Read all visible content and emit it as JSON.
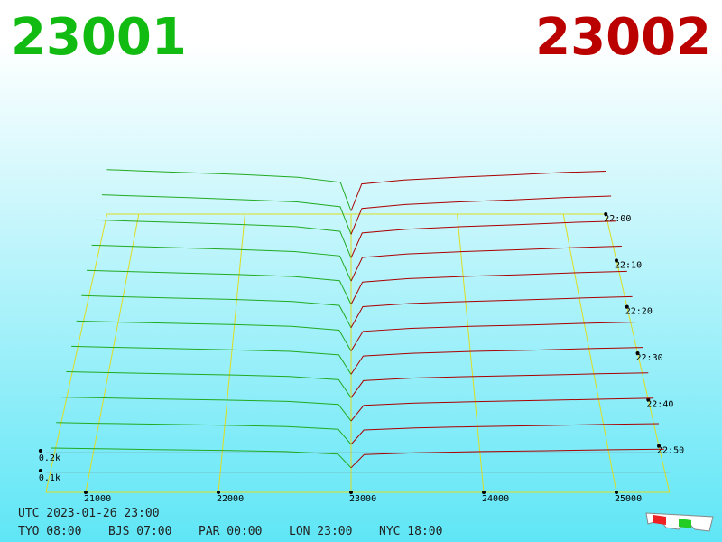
{
  "chart_data": {
    "type": "depth3d",
    "left_title": "23001",
    "left_title_color": "#11bb11",
    "right_title": "23002",
    "right_title_color": "#bb0000",
    "bid_color": "#22aa22",
    "ask_color": "#aa0000",
    "xlim": [
      20700,
      25400
    ],
    "xticks": [
      21000,
      22000,
      23000,
      24000,
      25000
    ],
    "zticks": [
      {
        "value": 100,
        "label": "0.1k"
      },
      {
        "value": 200,
        "label": "0.2k"
      }
    ],
    "bid_prices": [
      20700,
      21000,
      21500,
      22000,
      22500,
      22900,
      23000
    ],
    "ask_prices": [
      23000,
      23100,
      23500,
      24000,
      24500,
      25000,
      25400
    ],
    "snapshots": [
      {
        "time": "22:00",
        "bids": [
          280,
          272,
          260,
          248,
          232,
          200,
          20
        ],
        "asks": [
          20,
          190,
          215,
          232,
          246,
          262,
          270
        ]
      },
      {
        "time": null,
        "bids": [
          262,
          255,
          244,
          232,
          218,
          188,
          18
        ],
        "asks": [
          18,
          178,
          202,
          218,
          231,
          246,
          254
        ]
      },
      {
        "time": "22:10",
        "bids": [
          245,
          238,
          228,
          217,
          204,
          176,
          16
        ],
        "asks": [
          16,
          166,
          189,
          204,
          216,
          230,
          238
        ]
      },
      {
        "time": null,
        "bids": [
          228,
          222,
          212,
          202,
          190,
          164,
          15
        ],
        "asks": [
          15,
          155,
          176,
          190,
          201,
          214,
          222
        ]
      },
      {
        "time": "22:20",
        "bids": [
          212,
          206,
          197,
          188,
          176,
          152,
          14
        ],
        "asks": [
          14,
          144,
          164,
          177,
          187,
          199,
          206
        ]
      },
      {
        "time": null,
        "bids": [
          196,
          190,
          182,
          174,
          163,
          140,
          13
        ],
        "asks": [
          13,
          133,
          151,
          163,
          172,
          183,
          190
        ]
      },
      {
        "time": "22:30",
        "bids": [
          180,
          175,
          167,
          160,
          150,
          129,
          12
        ],
        "asks": [
          12,
          122,
          139,
          150,
          158,
          168,
          174
        ]
      },
      {
        "time": null,
        "bids": [
          165,
          160,
          153,
          146,
          137,
          118,
          11
        ],
        "asks": [
          11,
          112,
          127,
          137,
          144,
          153,
          159
        ]
      },
      {
        "time": "22:40",
        "bids": [
          150,
          146,
          139,
          133,
          125,
          107,
          10
        ],
        "asks": [
          10,
          102,
          116,
          125,
          131,
          139,
          144
        ]
      },
      {
        "time": null,
        "bids": [
          136,
          132,
          126,
          120,
          113,
          97,
          9
        ],
        "asks": [
          9,
          92,
          104,
          112,
          118,
          125,
          130
        ]
      },
      {
        "time": "22:50",
        "bids": [
          122,
          118,
          113,
          108,
          101,
          87,
          8
        ],
        "asks": [
          8,
          83,
          94,
          101,
          106,
          112,
          116
        ]
      },
      {
        "time": null,
        "bids": [
          108,
          105,
          100,
          96,
          90,
          77,
          7
        ],
        "asks": [
          7,
          74,
          84,
          90,
          94,
          99,
          102
        ]
      }
    ],
    "clock": {
      "utc": "UTC 2023-01-26 23:00",
      "cities": [
        "TYO 08:00",
        "BJS 07:00",
        "PAR 00:00",
        "LON 23:00",
        "NYC 18:00"
      ]
    }
  }
}
